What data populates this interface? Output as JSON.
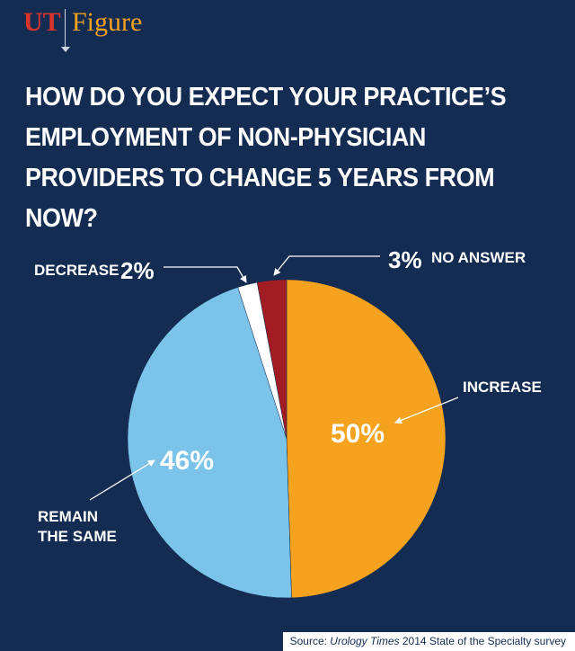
{
  "brand": {
    "ut": "UT",
    "figure": "Figure"
  },
  "title": "HOW DO YOU EXPECT YOUR PRACTICE’S EMPLOYMENT OF NON-PHYSICIAN PROVIDERS TO CHANGE 5 YEARS FROM NOW?",
  "chart_data": {
    "type": "pie",
    "title": "HOW DO YOU EXPECT YOUR PRACTICE’S EMPLOYMENT OF NON-PHYSICIAN PROVIDERS TO CHANGE 5 YEARS FROM NOW?",
    "slices": [
      {
        "label": "INCREASE",
        "value": 50,
        "display": "50%",
        "color": "#f5a21f"
      },
      {
        "label": "REMAIN THE SAME",
        "value": 46,
        "display": "46%",
        "color": "#7cc3ea"
      },
      {
        "label": "DECREASE",
        "value": 2,
        "display": "2%",
        "color": "#ffffff"
      },
      {
        "label": "NO ANSWER",
        "value": 3,
        "display": "3%",
        "color": "#a11d23"
      }
    ]
  },
  "labels": {
    "increase": "INCREASE",
    "remain_line1": "REMAIN",
    "remain_line2": "THE SAME",
    "decrease": "DECREASE",
    "no_answer": "NO ANSWER"
  },
  "source": {
    "prefix": "Source: ",
    "publication": "Urology Times",
    "suffix": " 2014 State of the Specialty survey"
  }
}
